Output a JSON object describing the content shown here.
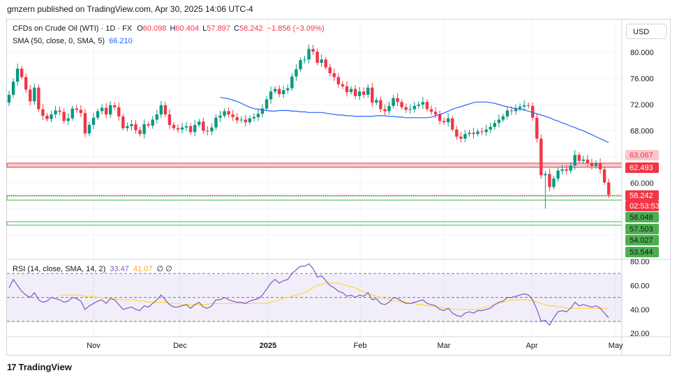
{
  "header": {
    "published": "gmzern published on TradingView.com, Apr 30, 2025 14:06 UTC-4"
  },
  "currency_button": "USD",
  "legend_main": {
    "symbol": "CFDs on Crude Oil (WTI) · 1D · FX",
    "open_label": "O",
    "open": "60.098",
    "high_label": "H",
    "high": "60.404",
    "low_label": "L",
    "low": "57.897",
    "close_label": "C",
    "close": "58.242",
    "change": "−1.856 (−3.09%)"
  },
  "legend_sma": {
    "label": "SMA (50, close, 0, SMA, 5)",
    "value": "66.210"
  },
  "legend_rsi": {
    "label": "RSI (14, close, SMA, 14, 2)",
    "rsi_value": "33.47",
    "ma_value": "41.07",
    "extra": "∅ ∅"
  },
  "price_axis": {
    "ticks": [
      "80.000",
      "76.000",
      "72.000",
      "68.000",
      "64.000",
      "60.000"
    ],
    "badges": [
      {
        "text": "63.067",
        "bg": "#f7c9cd",
        "fg": "#f23645"
      },
      {
        "text": "62.493",
        "bg": "#f23645",
        "fg": "#ffffff"
      },
      {
        "text": "58.242",
        "bg": "#f23645",
        "fg": "#ffffff"
      },
      {
        "text": "02:53:53",
        "bg": "#f23645",
        "fg": "#ffffff"
      },
      {
        "text": "58.048",
        "bg": "#4caf50",
        "fg": "#131722"
      },
      {
        "text": "57.503",
        "bg": "#4caf50",
        "fg": "#131722"
      },
      {
        "text": "54.027",
        "bg": "#4caf50",
        "fg": "#131722"
      },
      {
        "text": "53.544",
        "bg": "#4caf50",
        "fg": "#131722"
      }
    ]
  },
  "rsi_axis": {
    "ticks": [
      "80.00",
      "60.00",
      "40.00",
      "20.00"
    ]
  },
  "time_axis": {
    "labels": [
      "Nov",
      "Dec",
      "2025",
      "Feb",
      "Mar",
      "Apr",
      "May"
    ]
  },
  "brand": "TradingView",
  "colors": {
    "up": "#089981",
    "down": "#f23645",
    "sma": "#2962ff",
    "rsi": "#7e57c2",
    "rsi_ma": "#fdd835",
    "zone_red": "#f23645",
    "zone_green": "#4caf50"
  },
  "chart_data": [
    {
      "type": "candlestick",
      "title": "CFDs on Crude Oil (WTI) · 1D · FX",
      "x_labels": [
        "Nov",
        "Dec",
        "2025",
        "Feb",
        "Mar",
        "Apr",
        "May"
      ],
      "ylim": [
        52,
        82
      ],
      "close": [
        73.5,
        75.5,
        77.5,
        76.2,
        74.3,
        72.5,
        74.6,
        71.3,
        70.3,
        69.8,
        70.5,
        71.1,
        70.9,
        69.5,
        69.9,
        71.4,
        71.2,
        70.7,
        67.6,
        68.9,
        70.0,
        71.0,
        71.5,
        70.5,
        71.9,
        71.6,
        70.2,
        68.4,
        68.7,
        69.0,
        68.1,
        67.5,
        69.0,
        68.8,
        69.7,
        70.5,
        71.9,
        70.5,
        68.9,
        68.4,
        68.2,
        68.5,
        68.7,
        67.8,
        68.9,
        69.4,
        68.0,
        67.9,
        68.5,
        70.0,
        70.3,
        71.0,
        70.5,
        70.1,
        69.6,
        69.7,
        69.3,
        69.9,
        70.1,
        70.6,
        71.4,
        72.8,
        74.0,
        74.4,
        73.6,
        74.2,
        74.5,
        76.3,
        77.4,
        78.8,
        78.9,
        80.5,
        80.1,
        78.4,
        78.9,
        77.7,
        76.8,
        76.2,
        75.1,
        74.8,
        73.9,
        74.4,
        73.3,
        74.0,
        73.5,
        74.6,
        72.3,
        72.7,
        71.3,
        71.0,
        71.8,
        73.0,
        72.4,
        71.6,
        71.2,
        71.3,
        71.8,
        72.0,
        72.4,
        71.3,
        70.9,
        70.5,
        69.5,
        69.3,
        69.9,
        68.2,
        67.1,
        66.8,
        67.5,
        67.7,
        67.5,
        67.9,
        67.8,
        68.2,
        68.6,
        69.2,
        69.7,
        70.2,
        71.1,
        71.0,
        71.4,
        71.7,
        71.9,
        71.8,
        70.0,
        66.8,
        61.2,
        61.4,
        59.4,
        60.7,
        61.9,
        62.1,
        61.9,
        62.7,
        64.3,
        63.4,
        63.6,
        63.1,
        62.6,
        63.0,
        62.1,
        60.1,
        58.2
      ],
      "sma": {
        "name": "SMA (50, close, 0, SMA, 5)",
        "values": [
          73.1,
          73.0,
          72.9,
          72.7,
          72.5,
          72.2,
          71.9,
          71.6,
          71.4,
          71.3,
          71.2,
          71.1,
          71.0,
          71.0,
          71.1,
          71.1,
          71.1,
          71.0,
          71.0,
          70.9,
          70.9,
          70.8,
          70.8,
          70.8,
          70.8,
          70.7,
          70.6,
          70.5,
          70.4,
          70.4,
          70.3,
          70.3,
          70.2,
          70.2,
          70.2,
          70.2,
          70.2,
          70.3,
          70.3,
          70.3,
          70.2,
          70.2,
          70.1,
          70.1,
          70.0,
          70.0,
          70.0,
          70.0,
          70.0,
          70.0,
          70.1,
          70.3,
          70.5,
          70.7,
          71.0,
          71.3,
          71.5,
          71.7,
          71.9,
          72.1,
          72.3,
          72.4,
          72.4,
          72.4,
          72.3,
          72.2,
          72.0,
          71.8,
          71.7,
          71.5,
          71.4,
          71.3,
          71.2,
          71.0,
          70.8,
          70.6,
          70.4,
          70.2,
          70.0,
          69.7,
          69.5,
          69.2,
          69.0,
          68.7,
          68.5,
          68.2,
          68.0,
          67.7,
          67.4,
          67.1,
          66.8,
          66.5,
          66.2
        ]
      },
      "rsi_chart": {
        "ylim": [
          20,
          80
        ],
        "rsi": {
          "name": "RSI",
          "values": [
            58,
            65,
            60,
            55,
            52,
            50,
            54,
            48,
            46,
            47,
            50,
            49,
            48,
            46,
            47,
            50,
            49,
            47,
            40,
            43,
            45,
            47,
            48,
            45,
            49,
            48,
            44,
            40,
            41,
            42,
            40,
            39,
            43,
            42,
            45,
            48,
            52,
            48,
            44,
            42,
            42,
            43,
            44,
            41,
            44,
            46,
            42,
            41,
            43,
            48,
            48,
            50,
            48,
            47,
            46,
            46,
            45,
            47,
            48,
            49,
            52,
            57,
            62,
            65,
            62,
            64,
            65,
            70,
            73,
            76,
            76,
            78,
            74,
            67,
            68,
            64,
            60,
            58,
            55,
            54,
            51,
            52,
            50,
            52,
            51,
            54,
            48,
            49,
            45,
            44,
            46,
            50,
            49,
            47,
            45,
            45,
            46,
            47,
            48,
            45,
            44,
            43,
            40,
            39,
            41,
            37,
            35,
            34,
            37,
            38,
            37,
            39,
            39,
            40,
            41,
            44,
            46,
            47,
            50,
            50,
            51,
            52,
            53,
            52,
            48,
            40,
            30,
            31,
            27,
            33,
            38,
            39,
            38,
            41,
            46,
            43,
            44,
            43,
            42,
            43,
            41,
            37,
            33
          ]
        },
        "ma": {
          "name": "RSI-based MA",
          "values": [
            52,
            52,
            52,
            52,
            52,
            52,
            51,
            51,
            51,
            50,
            50,
            49,
            49,
            49,
            48,
            48,
            48,
            48,
            48,
            47,
            47,
            46,
            46,
            46,
            46,
            46,
            45,
            45,
            45,
            44,
            44,
            44,
            44,
            44,
            44,
            44,
            45,
            45,
            45,
            45,
            45,
            45,
            45,
            45,
            45,
            45,
            45,
            45,
            45,
            45,
            46,
            47,
            48,
            49,
            50,
            51,
            52,
            53,
            54,
            56,
            58,
            60,
            61,
            62,
            62,
            62,
            62,
            61,
            60,
            59,
            58,
            56,
            55,
            53,
            52,
            51,
            50,
            49,
            48,
            47,
            47,
            46,
            46,
            45,
            45,
            44,
            44,
            43,
            43,
            42,
            42,
            41,
            41,
            40,
            40,
            40,
            40,
            40,
            40,
            40,
            41,
            42,
            43,
            44,
            45,
            46,
            47,
            48,
            48,
            48,
            48,
            48,
            47,
            46,
            45,
            44,
            43,
            43,
            42,
            42,
            41,
            41,
            41,
            41,
            41,
            41,
            41,
            41,
            41,
            41,
            41
          ]
        },
        "levels": [
          70,
          50,
          30
        ]
      }
    }
  ]
}
